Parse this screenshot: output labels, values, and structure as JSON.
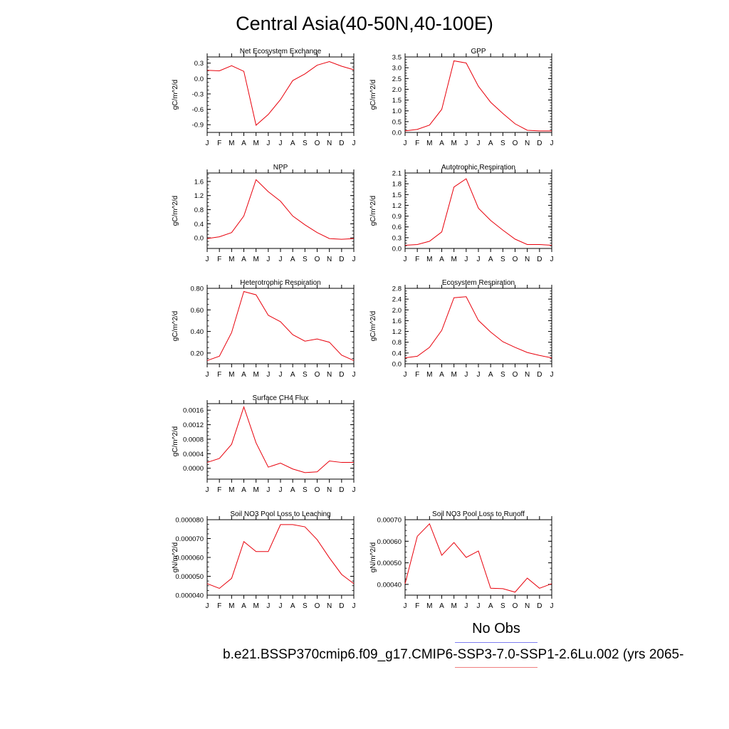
{
  "title": "Central Asia(40-50N,40-100E)",
  "legend": {
    "label": "No Obs"
  },
  "case_name": "b.e21.BSSP370cmip6.f09_g17.CMIP6-SSP3-7.0-SSP1-2.6Lu.002 (yrs 2065-",
  "colors": {
    "line": "#e8000b",
    "legend_blue": "#7f7ff0",
    "legend_red": "#f08080"
  },
  "chart_data": [
    {
      "type": "line",
      "title": "Net Ecosystem Exchange",
      "ylabel": "gC/m^2/d",
      "categories": [
        "J",
        "F",
        "M",
        "A",
        "M",
        "J",
        "J",
        "A",
        "S",
        "O",
        "N",
        "D",
        "J"
      ],
      "ylim": [
        -1.05,
        0.42
      ],
      "yticks": [
        -0.9,
        -0.6,
        -0.3,
        0.0,
        0.3
      ],
      "ytick_labels": [
        "-0.9",
        "-0.6",
        "-0.3",
        "0.0",
        "0.3"
      ],
      "values": [
        0.16,
        0.15,
        0.25,
        0.14,
        -0.91,
        -0.7,
        -0.41,
        -0.04,
        0.09,
        0.26,
        0.33,
        0.24,
        0.17
      ]
    },
    {
      "type": "line",
      "title": "GPP",
      "ylabel": "gC/m^2/d",
      "categories": [
        "J",
        "F",
        "M",
        "A",
        "M",
        "J",
        "J",
        "A",
        "S",
        "O",
        "N",
        "D",
        "J"
      ],
      "ylim": [
        0,
        3.5
      ],
      "yticks": [
        0,
        0.5,
        1.0,
        1.5,
        2.0,
        2.5,
        3.0,
        3.5
      ],
      "ytick_labels": [
        "0.0",
        "0.5",
        "1.0",
        "1.5",
        "2.0",
        "2.5",
        "3.0",
        "3.5"
      ],
      "values": [
        0.07,
        0.14,
        0.34,
        1.07,
        3.32,
        3.22,
        2.14,
        1.4,
        0.88,
        0.4,
        0.1,
        0.07,
        0.07
      ]
    },
    {
      "type": "line",
      "title": "NPP",
      "ylabel": "gC/m^2/d",
      "categories": [
        "J",
        "F",
        "M",
        "A",
        "M",
        "J",
        "J",
        "A",
        "S",
        "O",
        "N",
        "D",
        "J"
      ],
      "ylim": [
        -0.3,
        1.84
      ],
      "yticks": [
        0.0,
        0.4,
        0.8,
        1.2,
        1.6
      ],
      "ytick_labels": [
        "0.0",
        "0.4",
        "0.8",
        "1.2",
        "1.6"
      ],
      "values": [
        -0.02,
        0.03,
        0.15,
        0.62,
        1.65,
        1.31,
        1.04,
        0.62,
        0.37,
        0.15,
        -0.02,
        -0.04,
        -0.02
      ]
    },
    {
      "type": "line",
      "title": "Autotrophic Respiration",
      "ylabel": "gC/m^2/d",
      "categories": [
        "J",
        "F",
        "M",
        "A",
        "M",
        "J",
        "J",
        "A",
        "S",
        "O",
        "N",
        "D",
        "J"
      ],
      "ylim": [
        0,
        2.1
      ],
      "yticks": [
        0,
        0.3,
        0.6,
        0.9,
        1.2,
        1.5,
        1.8,
        2.1
      ],
      "ytick_labels": [
        "0.0",
        "0.3",
        "0.6",
        "0.9",
        "1.2",
        "1.5",
        "1.8",
        "2.1"
      ],
      "values": [
        0.09,
        0.11,
        0.2,
        0.46,
        1.71,
        1.94,
        1.12,
        0.78,
        0.51,
        0.26,
        0.11,
        0.11,
        0.09
      ]
    },
    {
      "type": "line",
      "title": "Heterotrophic Respiration",
      "ylabel": "gC/m^2/d",
      "categories": [
        "J",
        "F",
        "M",
        "A",
        "M",
        "J",
        "J",
        "A",
        "S",
        "O",
        "N",
        "D",
        "J"
      ],
      "ylim": [
        0.1,
        0.8
      ],
      "yticks": [
        0.2,
        0.4,
        0.6,
        0.8
      ],
      "ytick_labels": [
        "0.20",
        "0.40",
        "0.60",
        "0.80"
      ],
      "values": [
        0.13,
        0.17,
        0.39,
        0.77,
        0.74,
        0.55,
        0.49,
        0.37,
        0.31,
        0.33,
        0.3,
        0.18,
        0.13
      ]
    },
    {
      "type": "line",
      "title": "Ecosystem Respiration",
      "ylabel": "gC/m^2/d",
      "categories": [
        "J",
        "F",
        "M",
        "A",
        "M",
        "J",
        "J",
        "A",
        "S",
        "O",
        "N",
        "D",
        "J"
      ],
      "ylim": [
        0,
        2.8
      ],
      "yticks": [
        0,
        0.4,
        0.8,
        1.2,
        1.6,
        2.0,
        2.4,
        2.8
      ],
      "ytick_labels": [
        "0.0",
        "0.4",
        "0.8",
        "1.2",
        "1.6",
        "2.0",
        "2.4",
        "2.8"
      ],
      "values": [
        0.22,
        0.28,
        0.61,
        1.24,
        2.45,
        2.49,
        1.61,
        1.18,
        0.82,
        0.61,
        0.42,
        0.31,
        0.22
      ]
    },
    {
      "type": "line",
      "title": "Surface CH4 Flux",
      "ylabel": "gC/m^2/d",
      "categories": [
        "J",
        "F",
        "M",
        "A",
        "M",
        "J",
        "J",
        "A",
        "S",
        "O",
        "N",
        "D",
        "J"
      ],
      "ylim": [
        -0.0003,
        0.00178
      ],
      "yticks": [
        0.0,
        0.0004,
        0.0008,
        0.0012,
        0.0016
      ],
      "ytick_labels": [
        "0.0000",
        "0.0004",
        "0.0008",
        "0.0012",
        "0.0016"
      ],
      "values": [
        0.00016,
        0.00027,
        0.00066,
        0.00169,
        0.0007,
        3e-05,
        0.00014,
        -2e-05,
        -0.00012,
        -0.0001,
        0.0002,
        0.00016,
        0.00016
      ]
    },
    {
      "type": "line",
      "title": "Soil NO3 Pool Loss to Leaching",
      "ylabel": "gN/m^2/d",
      "categories": [
        "J",
        "F",
        "M",
        "A",
        "M",
        "J",
        "J",
        "A",
        "S",
        "O",
        "N",
        "D",
        "J"
      ],
      "ylim": [
        4e-05,
        8e-05
      ],
      "yticks": [
        4e-05,
        5e-05,
        6e-05,
        7e-05,
        8e-05
      ],
      "ytick_labels": [
        "0.000040",
        "0.000050",
        "0.000060",
        "0.000070",
        "0.000080"
      ],
      "values": [
        4.61e-05,
        4.36e-05,
        4.89e-05,
        6.84e-05,
        6.31e-05,
        6.31e-05,
        7.74e-05,
        7.74e-05,
        7.62e-05,
        6.94e-05,
        5.98e-05,
        5.1e-05,
        4.61e-05
      ]
    },
    {
      "type": "line",
      "title": "Soil NO3 Pool Loss to Runoff",
      "ylabel": "gN/m^2/d",
      "categories": [
        "J",
        "F",
        "M",
        "A",
        "M",
        "J",
        "J",
        "A",
        "S",
        "O",
        "N",
        "D",
        "J"
      ],
      "ylim": [
        0.00035,
        0.0007
      ],
      "yticks": [
        0.0004,
        0.0005,
        0.0006,
        0.0007
      ],
      "ytick_labels": [
        "0.00040",
        "0.00050",
        "0.00060",
        "0.00070"
      ],
      "values": [
        0.000403,
        0.000623,
        0.000681,
        0.000535,
        0.000594,
        0.000525,
        0.000555,
        0.000382,
        0.00038,
        0.000364,
        0.000429,
        0.000382,
        0.000403
      ]
    }
  ]
}
